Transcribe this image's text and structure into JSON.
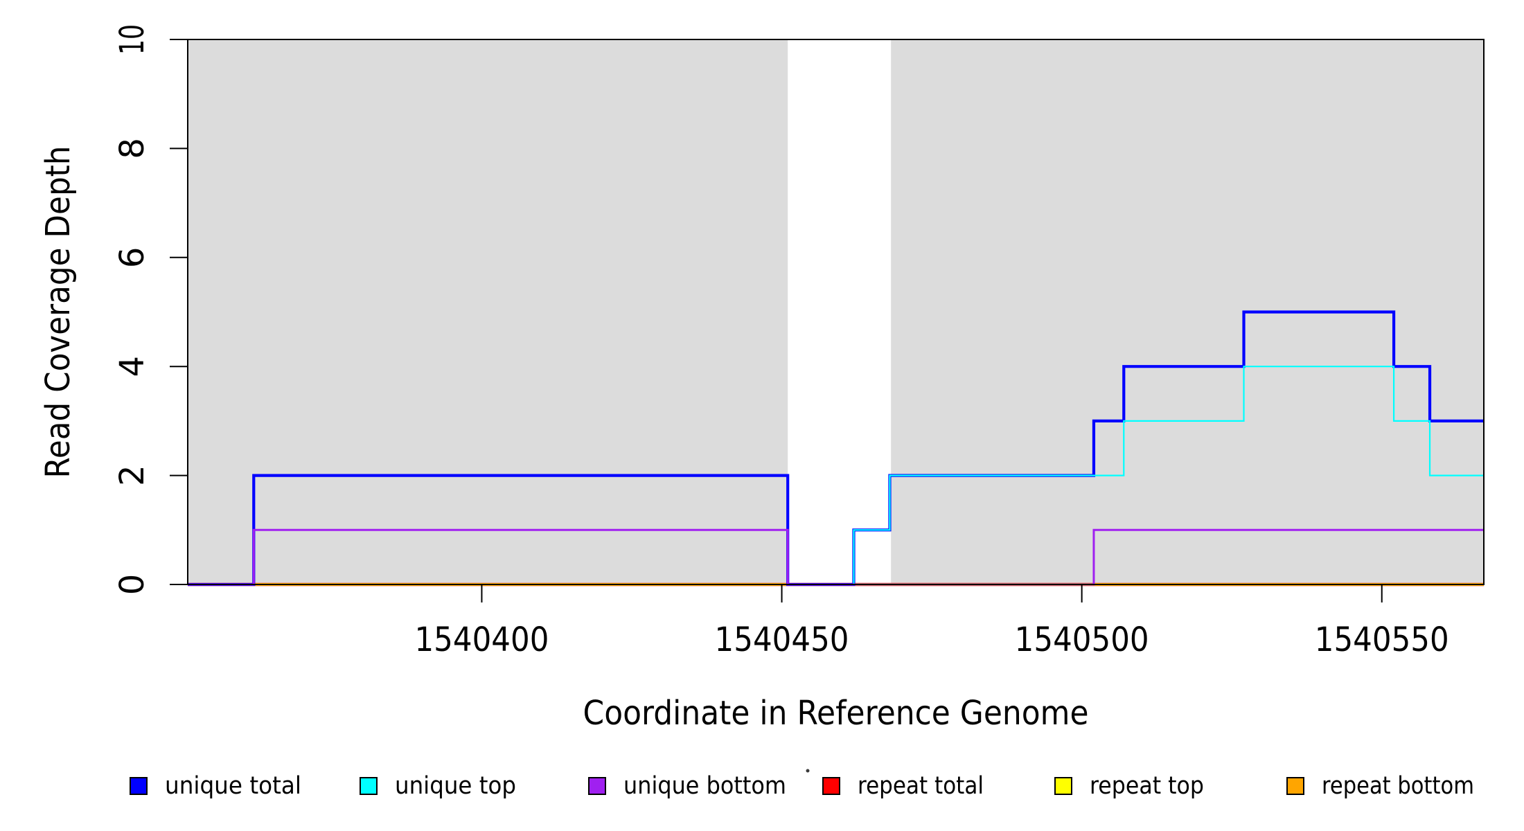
{
  "figure": {
    "title": "",
    "x_axis": {
      "label": "Coordinate in Reference Genome",
      "tick_labels": [
        "1540400",
        "1540450",
        "1540500",
        "1540550"
      ]
    },
    "y_axis": {
      "label": "Read Coverage Depth",
      "tick_labels": [
        "0",
        "2",
        "4",
        "6",
        "8",
        "10"
      ]
    },
    "legend": {
      "items": [
        {
          "label": "unique total",
          "color": "#0000FF"
        },
        {
          "label": "unique top",
          "color": "#00FFFF"
        },
        {
          "label": "unique bottom",
          "color": "#A020F0"
        },
        {
          "label": "repeat total",
          "color": "#FF0000"
        },
        {
          "label": "repeat top",
          "color": "#FFFF00"
        },
        {
          "label": "repeat bottom",
          "color": "#FFA500"
        }
      ]
    },
    "colors": {
      "shaded_region": "#DCDCDC",
      "axis": "#000000",
      "background": "#FFFFFF"
    }
  },
  "chart_data": {
    "type": "line",
    "subtype": "step",
    "title": "",
    "xlabel": "Coordinate in Reference Genome",
    "ylabel": "Read Coverage Depth",
    "xlim": [
      1540351,
      1540567
    ],
    "ylim": [
      0,
      10
    ],
    "xticks": [
      1540400,
      1540450,
      1540500,
      1540550
    ],
    "yticks": [
      0,
      2,
      4,
      6,
      8,
      10
    ],
    "grid": false,
    "legend_position": "bottom",
    "shaded_regions": [
      {
        "from": 1540351,
        "to": 1540451,
        "color": "#DCDCDC"
      },
      {
        "from": 1540468.2,
        "to": 1540567,
        "color": "#DCDCDC"
      }
    ],
    "series": [
      {
        "name": "unique total",
        "color": "#0000FF",
        "steps": [
          [
            1540351,
            0
          ],
          [
            1540362,
            2
          ],
          [
            1540451,
            0
          ],
          [
            1540462,
            1
          ],
          [
            1540468,
            2
          ],
          [
            1540502,
            3
          ],
          [
            1540507,
            4
          ],
          [
            1540527,
            5
          ],
          [
            1540552,
            4
          ],
          [
            1540558,
            3
          ]
        ]
      },
      {
        "name": "unique top",
        "color": "#00FFFF",
        "steps": [
          [
            1540351,
            0
          ],
          [
            1540362,
            1
          ],
          [
            1540451,
            0
          ],
          [
            1540462,
            1
          ],
          [
            1540468,
            2
          ],
          [
            1540507,
            3
          ],
          [
            1540527,
            4
          ],
          [
            1540552,
            3
          ],
          [
            1540558,
            2
          ]
        ]
      },
      {
        "name": "unique bottom",
        "color": "#A020F0",
        "steps": [
          [
            1540351,
            0
          ],
          [
            1540362,
            1
          ],
          [
            1540451,
            0
          ],
          [
            1540502,
            1
          ]
        ]
      },
      {
        "name": "repeat total",
        "color": "#FF0000",
        "steps": [
          [
            1540351,
            0
          ]
        ]
      },
      {
        "name": "repeat top",
        "color": "#FFFF00",
        "steps": [
          [
            1540351,
            0
          ]
        ]
      },
      {
        "name": "repeat bottom",
        "color": "#FFA500",
        "steps": [
          [
            1540351,
            0
          ]
        ]
      }
    ]
  }
}
